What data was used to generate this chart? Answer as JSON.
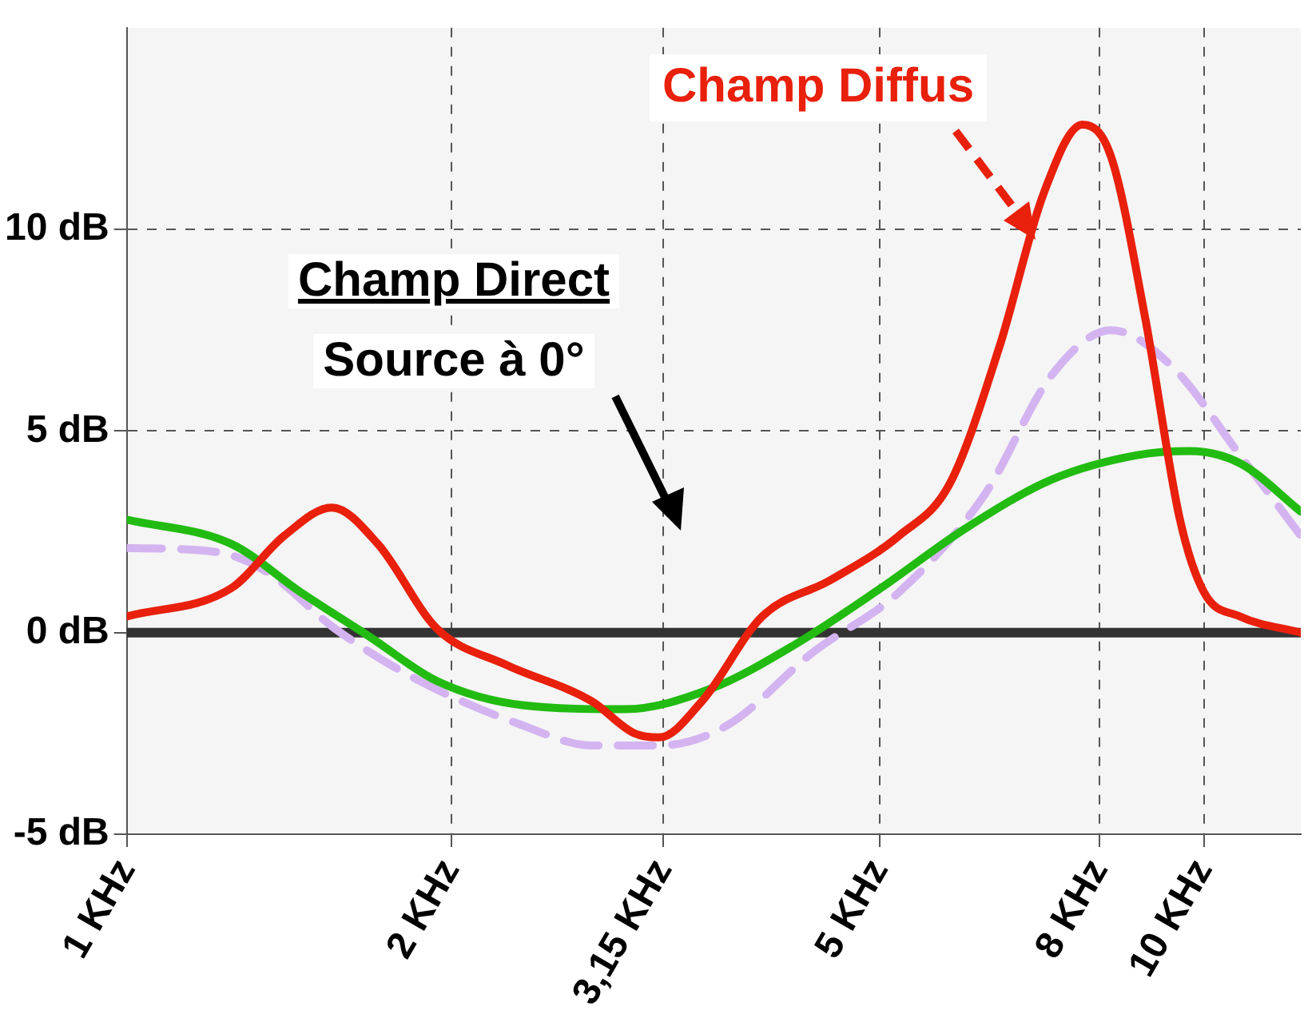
{
  "chart_data": {
    "type": "line",
    "log": "x",
    "xlim": [
      1,
      12.3
    ],
    "ylim": [
      -5,
      15
    ],
    "xticks": [
      {
        "value": 1,
        "label": "1 KHz"
      },
      {
        "value": 2,
        "label": "2 KHz"
      },
      {
        "value": 3.15,
        "label": "3,15 KHz"
      },
      {
        "value": 5,
        "label": "5 KHz"
      },
      {
        "value": 8,
        "label": "8 KHz"
      },
      {
        "value": 10,
        "label": "10 KHz"
      }
    ],
    "yticks": [
      {
        "value": -5,
        "label": "-5 dB"
      },
      {
        "value": 0,
        "label": "0 dB"
      },
      {
        "value": 5,
        "label": "5 dB"
      },
      {
        "value": 10,
        "label": "10 dB"
      }
    ],
    "grid": true,
    "legend": false,
    "marker": "none",
    "ref_lines": [
      {
        "axis": "y",
        "value": 0,
        "color": "#333333"
      }
    ],
    "annotations": [
      "Champ Direct",
      "Source à 0°"
    ],
    "series": [
      {
        "name": "Champ Diffus",
        "color": "#e8200c",
        "line_style": "solid",
        "x": [
          1,
          1.25,
          1.4,
          1.55,
          1.71,
          1.94,
          2.25,
          2.7,
          2.96,
          3.12,
          3.42,
          3.89,
          4.5,
          5.21,
          5.81,
          6.46,
          7.1,
          7.71,
          8.2,
          8.82,
          9.5,
          10,
          10.8,
          12.3
        ],
        "values": [
          0.4,
          1.1,
          2.4,
          3.1,
          2.2,
          0.1,
          -0.8,
          -1.7,
          -2.5,
          -2.6,
          -1.7,
          0.4,
          1.3,
          2.4,
          3.7,
          7.1,
          10.9,
          12.6,
          11.8,
          7.8,
          2.8,
          1,
          0.4,
          0
        ]
      },
      {
        "color": "#22bb11",
        "line_style": "solid",
        "x": [
          1,
          1.25,
          1.45,
          1.68,
          1.94,
          2.33,
          2.9,
          3.48,
          4.17,
          5.01,
          6.02,
          7.23,
          8.67,
          9.7,
          10.8,
          12.3
        ],
        "values": [
          2.8,
          2.2,
          1,
          -0.1,
          -1.2,
          -1.8,
          -1.9,
          -1.4,
          -0.3,
          1.1,
          2.6,
          3.8,
          4.4,
          4.5,
          4.2,
          3
        ]
      },
      {
        "color": "#d4b4f0",
        "line_style": "dashed",
        "x": [
          1,
          1.21,
          1.35,
          1.56,
          1.87,
          2.33,
          2.7,
          3.12,
          3.61,
          4.33,
          5.21,
          6.25,
          7.23,
          8.2,
          9.34,
          10.8,
          12.3
        ],
        "values": [
          2.1,
          2,
          1.5,
          0.1,
          -1.2,
          -2.3,
          -2.8,
          -2.8,
          -2.3,
          -0.5,
          1,
          3.4,
          6.4,
          7.5,
          6.6,
          4.4,
          2.4
        ]
      }
    ]
  }
}
